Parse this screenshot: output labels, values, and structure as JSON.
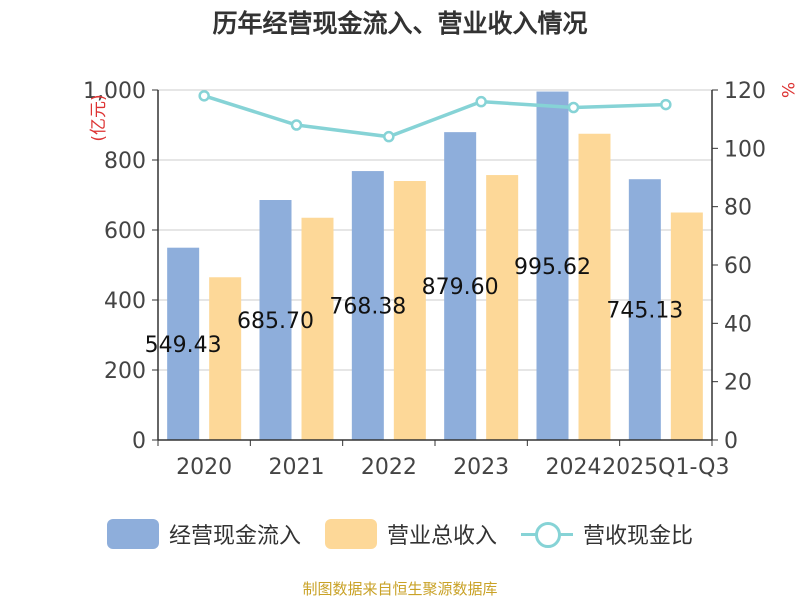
{
  "chart_data": {
    "type": "bar",
    "title": "历年经营现金流入、营业收入情况",
    "categories": [
      "2020",
      "2021",
      "2022",
      "2023",
      "2024",
      "2025Q1-Q3"
    ],
    "y_left": {
      "label": "(亿元)",
      "ylim": [
        0,
        1000
      ],
      "ticks": [
        0,
        200,
        400,
        600,
        800,
        1000
      ],
      "tick_labels": [
        "0",
        "200",
        "400",
        "600",
        "800",
        "1,000"
      ]
    },
    "y_right": {
      "label": "%",
      "ylim": [
        0,
        120
      ],
      "ticks": [
        0,
        20,
        40,
        60,
        80,
        100,
        120
      ],
      "tick_labels": [
        "0",
        "20",
        "40",
        "60",
        "80",
        "100",
        "120"
      ]
    },
    "series": [
      {
        "name": "经营现金流入",
        "type": "bar",
        "axis": "left",
        "color": "#8eaedb",
        "values": [
          549.43,
          685.7,
          768.38,
          879.6,
          995.62,
          745.13
        ],
        "labels": [
          "549.43",
          "685.70",
          "768.38",
          "879.60",
          "995.62",
          "745.13"
        ]
      },
      {
        "name": "营业总收入",
        "type": "bar",
        "axis": "left",
        "color": "#fdd898",
        "values": [
          465,
          635,
          740,
          757,
          875,
          650
        ]
      },
      {
        "name": "营收现金比",
        "type": "line",
        "axis": "right",
        "color": "#86d3d6",
        "values": [
          118,
          108,
          104,
          116,
          114,
          115
        ]
      }
    ],
    "grid": true,
    "legend_position": "bottom"
  },
  "source": "制图数据来自恒生聚源数据库"
}
